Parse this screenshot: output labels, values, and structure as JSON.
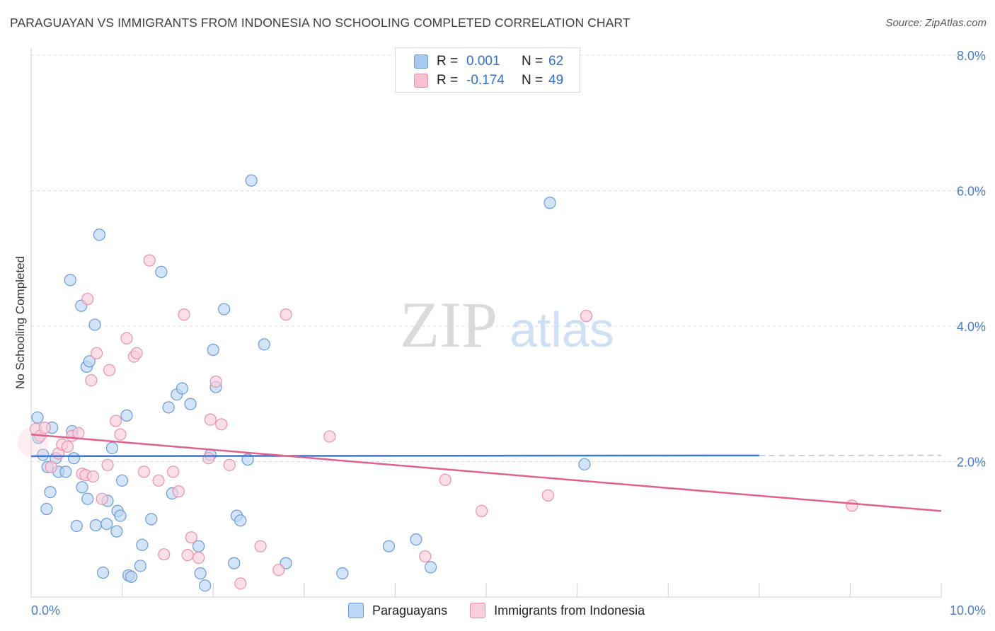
{
  "header": {
    "title": "PARAGUAYAN VS IMMIGRANTS FROM INDONESIA NO SCHOOLING COMPLETED CORRELATION CHART",
    "source": "Source: ZipAtlas.com"
  },
  "watermark": {
    "zip": "ZIP",
    "atlas": "atlas"
  },
  "legend": {
    "rows": [
      {
        "r_label": "R =",
        "r_value": "0.001",
        "n_label": "N =",
        "n_value": "62",
        "color": "#a8c8f0",
        "border": "#6a9ad8"
      },
      {
        "r_label": "R =",
        "r_value": "-0.174",
        "n_label": "N =",
        "n_value": "49",
        "color": "#f7c0d0",
        "border": "#e890ad"
      }
    ]
  },
  "bottom_legend": {
    "items": [
      {
        "label": "Paraguayans",
        "color": "#bcd6f5",
        "border": "#6a9ad8"
      },
      {
        "label": "Immigrants from Indonesia",
        "color": "#f9cedb",
        "border": "#e890ad"
      }
    ]
  },
  "chart_data": {
    "type": "scatter",
    "title": "PARAGUAYAN VS IMMIGRANTS FROM INDONESIA NO SCHOOLING COMPLETED CORRELATION CHART",
    "xlabel": "",
    "ylabel": "No Schooling Completed",
    "xlim": [
      0,
      10
    ],
    "ylim": [
      0,
      8
    ],
    "x_tick_labels": [
      "0.0%",
      "10.0%"
    ],
    "y_tick_labels": [
      "2.0%",
      "4.0%",
      "6.0%",
      "8.0%"
    ],
    "y_ticks": [
      2,
      4,
      6,
      8
    ],
    "x_minor_ticks": [
      1,
      2,
      3,
      4,
      5,
      6,
      7,
      8,
      9,
      10
    ],
    "series": [
      {
        "name": "Paraguayans",
        "color": "#6a9ad8",
        "fill": "#bcd6f5",
        "trend": {
          "x": [
            0,
            8.0
          ],
          "y": [
            2.08,
            2.09
          ],
          "dashed_to": 10.0,
          "color": "#3a78d4"
        },
        "points": [
          [
            0.07,
            2.65
          ],
          [
            0.08,
            2.35
          ],
          [
            0.13,
            2.1
          ],
          [
            0.17,
            1.3
          ],
          [
            0.18,
            1.92
          ],
          [
            0.21,
            1.55
          ],
          [
            0.23,
            2.5
          ],
          [
            0.27,
            2.05
          ],
          [
            0.3,
            1.85
          ],
          [
            0.38,
            1.85
          ],
          [
            0.43,
            4.68
          ],
          [
            0.45,
            2.45
          ],
          [
            0.47,
            2.05
          ],
          [
            0.5,
            1.05
          ],
          [
            0.55,
            4.3
          ],
          [
            0.56,
            1.62
          ],
          [
            0.61,
            3.4
          ],
          [
            0.62,
            1.45
          ],
          [
            0.64,
            3.48
          ],
          [
            0.7,
            4.02
          ],
          [
            0.71,
            1.06
          ],
          [
            0.75,
            5.35
          ],
          [
            0.79,
            0.36
          ],
          [
            0.83,
            1.08
          ],
          [
            0.84,
            1.42
          ],
          [
            0.89,
            2.2
          ],
          [
            0.94,
            0.97
          ],
          [
            0.95,
            1.27
          ],
          [
            0.98,
            1.2
          ],
          [
            1.0,
            1.72
          ],
          [
            1.05,
            2.68
          ],
          [
            1.07,
            0.32
          ],
          [
            1.1,
            0.3
          ],
          [
            1.2,
            0.46
          ],
          [
            1.22,
            0.77
          ],
          [
            1.32,
            1.15
          ],
          [
            1.43,
            4.8
          ],
          [
            1.51,
            2.8
          ],
          [
            1.55,
            1.53
          ],
          [
            1.6,
            2.99
          ],
          [
            1.66,
            3.08
          ],
          [
            1.75,
            2.85
          ],
          [
            1.84,
            0.75
          ],
          [
            1.86,
            0.35
          ],
          [
            1.91,
            0.17
          ],
          [
            1.97,
            2.1
          ],
          [
            2.0,
            3.65
          ],
          [
            2.03,
            3.1
          ],
          [
            2.12,
            4.25
          ],
          [
            2.23,
            0.5
          ],
          [
            2.26,
            1.2
          ],
          [
            2.3,
            1.13
          ],
          [
            2.38,
            2.03
          ],
          [
            2.42,
            6.15
          ],
          [
            2.56,
            3.73
          ],
          [
            2.8,
            0.5
          ],
          [
            3.42,
            0.35
          ],
          [
            3.93,
            0.75
          ],
          [
            4.23,
            0.85
          ],
          [
            4.39,
            0.44
          ],
          [
            5.7,
            5.82
          ],
          [
            6.08,
            1.96
          ]
        ]
      },
      {
        "name": "Immigrants from Indonesia",
        "color": "#e890ad",
        "fill": "#f9cedb",
        "trend": {
          "x": [
            0,
            10.0
          ],
          "y": [
            2.4,
            1.27
          ],
          "color": "#e0608e"
        },
        "points": [
          [
            0.05,
            2.48
          ],
          [
            0.1,
            2.38
          ],
          [
            0.15,
            2.5
          ],
          [
            0.22,
            1.92
          ],
          [
            0.3,
            2.12
          ],
          [
            0.34,
            2.25
          ],
          [
            0.4,
            2.22
          ],
          [
            0.45,
            2.38
          ],
          [
            0.52,
            2.42
          ],
          [
            0.56,
            1.82
          ],
          [
            0.6,
            1.8
          ],
          [
            0.62,
            4.4
          ],
          [
            0.66,
            3.2
          ],
          [
            0.68,
            1.78
          ],
          [
            0.72,
            3.6
          ],
          [
            0.78,
            1.45
          ],
          [
            0.84,
            1.95
          ],
          [
            0.86,
            3.35
          ],
          [
            0.93,
            2.6
          ],
          [
            0.98,
            2.4
          ],
          [
            1.05,
            3.82
          ],
          [
            1.13,
            3.55
          ],
          [
            1.16,
            3.6
          ],
          [
            1.24,
            1.85
          ],
          [
            1.3,
            4.97
          ],
          [
            1.4,
            1.72
          ],
          [
            1.46,
            0.63
          ],
          [
            1.56,
            1.85
          ],
          [
            1.62,
            1.56
          ],
          [
            1.68,
            4.17
          ],
          [
            1.72,
            0.62
          ],
          [
            1.76,
            0.88
          ],
          [
            1.84,
            0.58
          ],
          [
            1.95,
            2.05
          ],
          [
            1.97,
            2.62
          ],
          [
            2.03,
            3.18
          ],
          [
            2.09,
            2.55
          ],
          [
            2.18,
            1.95
          ],
          [
            2.3,
            0.2
          ],
          [
            2.52,
            0.75
          ],
          [
            2.72,
            0.4
          ],
          [
            2.8,
            4.17
          ],
          [
            3.28,
            2.37
          ],
          [
            4.33,
            0.6
          ],
          [
            4.55,
            1.73
          ],
          [
            4.95,
            1.27
          ],
          [
            5.68,
            1.5
          ],
          [
            6.1,
            4.15
          ],
          [
            9.02,
            1.35
          ]
        ]
      }
    ]
  }
}
